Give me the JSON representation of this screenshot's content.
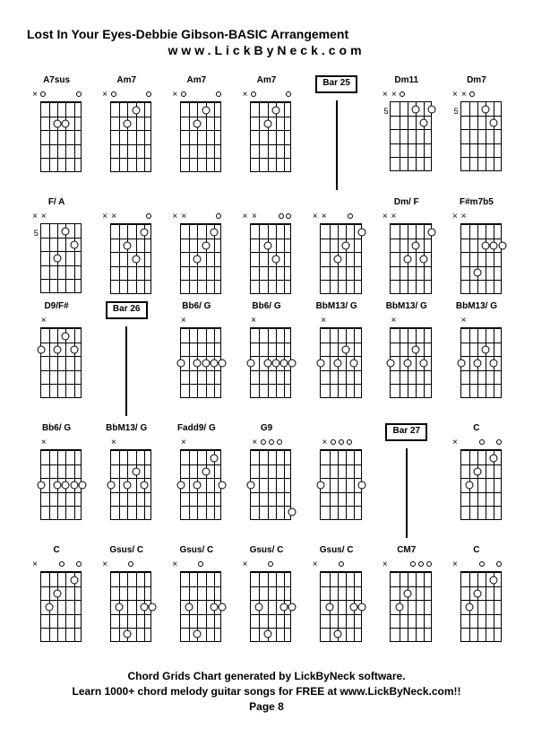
{
  "title": "Lost In Your Eyes-Debbie Gibson-BASIC Arrangement",
  "subtitle": "www.LickByNeck.com",
  "footer_line1": "Chord Grids Chart generated by LickByNeck software.",
  "footer_line2": "Learn 1000+ chord melody guitar songs for FREE at www.LickByNeck.com!!",
  "page": "Page 8",
  "chords": [
    {
      "label": "A7sus",
      "fretNum": "",
      "markers": [
        "x",
        "o",
        "",
        "",
        "",
        "o"
      ],
      "dots": [
        {
          "s": 2,
          "f": 2
        },
        {
          "s": 3,
          "f": 2
        }
      ]
    },
    {
      "label": "Am7",
      "fretNum": "",
      "markers": [
        "x",
        "o",
        "",
        "",
        "",
        "o"
      ],
      "dots": [
        {
          "s": 2,
          "f": 2
        },
        {
          "s": 3,
          "f": 1
        }
      ]
    },
    {
      "label": "Am7",
      "fretNum": "",
      "markers": [
        "x",
        "o",
        "",
        "",
        "",
        "o"
      ],
      "dots": [
        {
          "s": 2,
          "f": 2
        },
        {
          "s": 3,
          "f": 1
        }
      ]
    },
    {
      "label": "Am7",
      "fretNum": "",
      "markers": [
        "x",
        "o",
        "",
        "",
        "",
        "o"
      ],
      "dots": [
        {
          "s": 2,
          "f": 2
        },
        {
          "s": 3,
          "f": 1
        }
      ]
    },
    {
      "label": "Bar 25",
      "bar": true
    },
    {
      "label": "Dm11",
      "fretNum": "5",
      "markers": [
        "x",
        "x",
        "o",
        "",
        "",
        ""
      ],
      "dots": [
        {
          "s": 3,
          "f": 1
        },
        {
          "s": 4,
          "f": 2
        },
        {
          "s": 5,
          "f": 1
        }
      ],
      "noTop": true
    },
    {
      "label": "Dm7",
      "fretNum": "5",
      "markers": [
        "x",
        "x",
        "o",
        "",
        "",
        ""
      ],
      "dots": [
        {
          "s": 3,
          "f": 1
        },
        {
          "s": 4,
          "f": 2
        }
      ],
      "noTop": true
    },
    {
      "label": "F/ A",
      "fretNum": "5",
      "markers": [
        "x",
        "x",
        "",
        "",
        "",
        ""
      ],
      "dots": [
        {
          "s": 2,
          "f": 3
        },
        {
          "s": 3,
          "f": 1
        },
        {
          "s": 4,
          "f": 2
        }
      ],
      "noTop": true
    },
    {
      "label": "",
      "fretNum": "",
      "markers": [
        "x",
        "x",
        "",
        "",
        "",
        "o"
      ],
      "dots": [
        {
          "s": 2,
          "f": 2
        },
        {
          "s": 3,
          "f": 3
        },
        {
          "s": 4,
          "f": 1
        }
      ]
    },
    {
      "label": "",
      "fretNum": "",
      "markers": [
        "x",
        "x",
        "",
        "",
        "",
        "o"
      ],
      "dots": [
        {
          "s": 2,
          "f": 3
        },
        {
          "s": 3,
          "f": 2
        },
        {
          "s": 4,
          "f": 1
        }
      ]
    },
    {
      "label": "",
      "fretNum": "",
      "markers": [
        "x",
        "x",
        "",
        "",
        "o",
        "o"
      ],
      "dots": [
        {
          "s": 2,
          "f": 2
        },
        {
          "s": 3,
          "f": 3
        }
      ]
    },
    {
      "label": "",
      "fretNum": "",
      "markers": [
        "x",
        "x",
        "",
        "",
        "o",
        ""
      ],
      "dots": [
        {
          "s": 2,
          "f": 3
        },
        {
          "s": 3,
          "f": 2
        },
        {
          "s": 5,
          "f": 1
        }
      ]
    },
    {
      "label": "Dm/ F",
      "fretNum": "",
      "markers": [
        "x",
        "x",
        "",
        "",
        "",
        ""
      ],
      "dots": [
        {
          "s": 2,
          "f": 3
        },
        {
          "s": 3,
          "f": 2
        },
        {
          "s": 4,
          "f": 3
        },
        {
          "s": 5,
          "f": 1
        }
      ]
    },
    {
      "label": "F#m7b5",
      "fretNum": "",
      "markers": [
        "x",
        "x",
        "",
        "",
        "",
        ""
      ],
      "dots": [
        {
          "s": 2,
          "f": 4
        },
        {
          "s": 3,
          "f": 2
        },
        {
          "s": 4,
          "f": 2
        },
        {
          "s": 5,
          "f": 2
        }
      ]
    },
    {
      "label": "D9/F#",
      "fretNum": "",
      "markers": [
        "",
        "x",
        "",
        "",
        "",
        ""
      ],
      "dots": [
        {
          "s": 0,
          "f": 2
        },
        {
          "s": 2,
          "f": 2
        },
        {
          "s": 3,
          "f": 1
        },
        {
          "s": 4,
          "f": 2
        }
      ]
    },
    {
      "label": "Bar 26",
      "bar": true
    },
    {
      "label": "Bb6/ G",
      "fretNum": "",
      "markers": [
        "",
        "x",
        "",
        "",
        "",
        ""
      ],
      "dots": [
        {
          "s": 0,
          "f": 3
        },
        {
          "s": 2,
          "f": 3
        },
        {
          "s": 3,
          "f": 3
        },
        {
          "s": 4,
          "f": 3
        },
        {
          "s": 5,
          "f": 3
        }
      ]
    },
    {
      "label": "Bb6/ G",
      "fretNum": "",
      "markers": [
        "",
        "x",
        "",
        "",
        "",
        ""
      ],
      "dots": [
        {
          "s": 0,
          "f": 3
        },
        {
          "s": 2,
          "f": 3
        },
        {
          "s": 3,
          "f": 3
        },
        {
          "s": 4,
          "f": 3
        },
        {
          "s": 5,
          "f": 3
        }
      ]
    },
    {
      "label": "BbM13/ G",
      "fretNum": "",
      "markers": [
        "",
        "x",
        "",
        "",
        "",
        ""
      ],
      "dots": [
        {
          "s": 0,
          "f": 3
        },
        {
          "s": 2,
          "f": 3
        },
        {
          "s": 3,
          "f": 2
        },
        {
          "s": 4,
          "f": 3
        }
      ]
    },
    {
      "label": "BbM13/ G",
      "fretNum": "",
      "markers": [
        "",
        "x",
        "",
        "",
        "",
        ""
      ],
      "dots": [
        {
          "s": 0,
          "f": 3
        },
        {
          "s": 2,
          "f": 3
        },
        {
          "s": 3,
          "f": 2
        },
        {
          "s": 4,
          "f": 3
        }
      ]
    },
    {
      "label": "BbM13/ G",
      "fretNum": "",
      "markers": [
        "",
        "x",
        "",
        "",
        "",
        ""
      ],
      "dots": [
        {
          "s": 0,
          "f": 3
        },
        {
          "s": 2,
          "f": 3
        },
        {
          "s": 3,
          "f": 2
        },
        {
          "s": 4,
          "f": 3
        }
      ]
    },
    {
      "label": "Bb6/ G",
      "fretNum": "",
      "markers": [
        "",
        "x",
        "",
        "",
        "",
        ""
      ],
      "dots": [
        {
          "s": 0,
          "f": 3
        },
        {
          "s": 2,
          "f": 3
        },
        {
          "s": 3,
          "f": 3
        },
        {
          "s": 4,
          "f": 3
        },
        {
          "s": 5,
          "f": 3
        }
      ]
    },
    {
      "label": "BbM13/ G",
      "fretNum": "",
      "markers": [
        "",
        "x",
        "",
        "",
        "",
        ""
      ],
      "dots": [
        {
          "s": 0,
          "f": 3
        },
        {
          "s": 2,
          "f": 3
        },
        {
          "s": 3,
          "f": 2
        },
        {
          "s": 4,
          "f": 3
        }
      ]
    },
    {
      "label": "Fadd9/ G",
      "fretNum": "",
      "markers": [
        "",
        "x",
        "",
        "",
        "",
        ""
      ],
      "dots": [
        {
          "s": 0,
          "f": 3
        },
        {
          "s": 2,
          "f": 3
        },
        {
          "s": 3,
          "f": 2
        },
        {
          "s": 4,
          "f": 1
        },
        {
          "s": 5,
          "f": 3
        }
      ]
    },
    {
      "label": "G9",
      "fretNum": "",
      "markers": [
        "",
        "x",
        "o",
        "o",
        "o",
        ""
      ],
      "dots": [
        {
          "s": 0,
          "f": 3
        },
        {
          "s": 5,
          "f": 5
        }
      ]
    },
    {
      "label": "",
      "fretNum": "",
      "markers": [
        "",
        "x",
        "o",
        "o",
        "o",
        ""
      ],
      "dots": [
        {
          "s": 0,
          "f": 3
        },
        {
          "s": 5,
          "f": 3
        }
      ]
    },
    {
      "label": "Bar 27",
      "bar": true
    },
    {
      "label": "C",
      "fretNum": "",
      "markers": [
        "x",
        "",
        "",
        "o",
        "",
        "o"
      ],
      "dots": [
        {
          "s": 1,
          "f": 3
        },
        {
          "s": 2,
          "f": 2
        },
        {
          "s": 4,
          "f": 1
        }
      ]
    },
    {
      "label": "C",
      "fretNum": "",
      "markers": [
        "x",
        "",
        "",
        "o",
        "",
        "o"
      ],
      "dots": [
        {
          "s": 1,
          "f": 3
        },
        {
          "s": 2,
          "f": 2
        },
        {
          "s": 4,
          "f": 1
        }
      ]
    },
    {
      "label": "Gsus/ C",
      "fretNum": "",
      "markers": [
        "x",
        "",
        "",
        "o",
        "",
        ""
      ],
      "dots": [
        {
          "s": 1,
          "f": 3
        },
        {
          "s": 2,
          "f": 5
        },
        {
          "s": 4,
          "f": 3
        },
        {
          "s": 5,
          "f": 3
        }
      ]
    },
    {
      "label": "Gsus/ C",
      "fretNum": "",
      "markers": [
        "x",
        "",
        "",
        "o",
        "",
        ""
      ],
      "dots": [
        {
          "s": 1,
          "f": 3
        },
        {
          "s": 2,
          "f": 5
        },
        {
          "s": 4,
          "f": 3
        },
        {
          "s": 5,
          "f": 3
        }
      ]
    },
    {
      "label": "Gsus/ C",
      "fretNum": "",
      "markers": [
        "x",
        "",
        "",
        "o",
        "",
        ""
      ],
      "dots": [
        {
          "s": 1,
          "f": 3
        },
        {
          "s": 2,
          "f": 5
        },
        {
          "s": 4,
          "f": 3
        },
        {
          "s": 5,
          "f": 3
        }
      ]
    },
    {
      "label": "Gsus/ C",
      "fretNum": "",
      "markers": [
        "x",
        "",
        "",
        "o",
        "",
        ""
      ],
      "dots": [
        {
          "s": 1,
          "f": 3
        },
        {
          "s": 2,
          "f": 5
        },
        {
          "s": 4,
          "f": 3
        },
        {
          "s": 5,
          "f": 3
        }
      ]
    },
    {
      "label": "CM7",
      "fretNum": "",
      "markers": [
        "x",
        "",
        "",
        "o",
        "o",
        "o"
      ],
      "dots": [
        {
          "s": 1,
          "f": 3
        },
        {
          "s": 2,
          "f": 2
        }
      ]
    },
    {
      "label": "C",
      "fretNum": "",
      "markers": [
        "x",
        "",
        "",
        "o",
        "",
        "o"
      ],
      "dots": [
        {
          "s": 1,
          "f": 3
        },
        {
          "s": 2,
          "f": 2
        },
        {
          "s": 4,
          "f": 1
        }
      ]
    }
  ],
  "diagram_style": {
    "strings": 6,
    "frets": 5,
    "string_spacing": 9.2,
    "fret_spacing": 15.2,
    "colors": {
      "line": "#000000",
      "dot_fill": "#ffffff",
      "dot_border": "#000000",
      "background": "#ffffff"
    }
  }
}
